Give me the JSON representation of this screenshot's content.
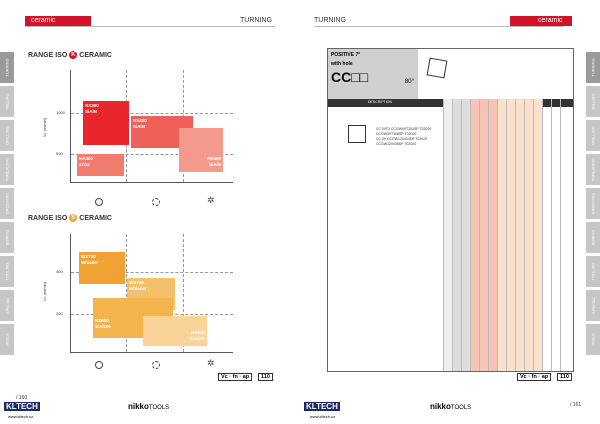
{
  "left_header": {
    "section": "ceramic",
    "topic": "TURNING"
  },
  "right_header": {
    "topic": "TURNING",
    "section": "ceramic"
  },
  "side_tabs": [
    "TURNING",
    "MILLING",
    "DRILLING",
    "THREADING",
    "GROOVING",
    "BORING",
    "TOOLING",
    "SPECIAL",
    "INDEX"
  ],
  "chart_data": [
    {
      "type": "range-boxes",
      "title_prefix": "RANGE ISO",
      "iso_letter": "K",
      "title_suffix": "CERAMIC",
      "ylabel": "Vc (m/min)",
      "yticks": [
        "1000",
        "500"
      ],
      "boxes": [
        {
          "name": "NX300",
          "sub": "SiAlN",
          "color": "#e9262e"
        },
        {
          "name": "NS400",
          "sub": "SiAlN",
          "color": "#f0605b"
        },
        {
          "name": "NA300",
          "sub": "ZrO2",
          "color": "#f07d6e"
        },
        {
          "name": "NS450",
          "sub": "SiAlN",
          "color": "#f49a8d"
        }
      ],
      "x_icons": [
        "open-circle",
        "rotating-circle",
        "sparkle"
      ]
    },
    {
      "type": "range-boxes",
      "title_prefix": "RANGE ISO",
      "iso_letter": "S",
      "title_suffix": "CERAMIC",
      "ylabel": "Vc (m/min)",
      "yticks": [
        "400",
        "200"
      ],
      "boxes": [
        {
          "name": "WX700",
          "sub": "Whisker",
          "color": "#f0a334"
        },
        {
          "name": "WX750",
          "sub": "Whisker",
          "color": "#f5c06b"
        },
        {
          "name": "NS600",
          "sub": "SiAlON",
          "color": "#f3b44e"
        },
        {
          "name": "NS650",
          "sub": "SiAlON",
          "color": "#f9d397"
        }
      ],
      "x_icons": [
        "open-circle",
        "rotating-circle",
        "sparkle"
      ]
    }
  ],
  "footer": {
    "vc_label": "Vc · fn · ap",
    "page_ref": "110",
    "left_page": "/ 160",
    "right_page": "/ 161",
    "brand_kl": "KLTECH",
    "brand_nikko": "nikko",
    "brand_tools": "TOOLS",
    "url": "www.kltech.cz"
  },
  "insert_table": {
    "title": "POSITIVE 7°",
    "subtitle": "with hole",
    "code": "CC□□",
    "angle": "80°",
    "description_header": "DESCRIPTION",
    "rows": [
      {
        "iso": "CC 09T3",
        "code": "CCGW09T304SP",
        "sub": "T02020"
      },
      {
        "iso": "",
        "code": "CCGW09T308SP",
        "sub": "T02020"
      },
      {
        "iso": "CC 09",
        "code": "CCGW120404SP",
        "sub": "T02020"
      },
      {
        "iso": "",
        "code": "CCGW120408SP",
        "sub": "T02020"
      }
    ]
  }
}
